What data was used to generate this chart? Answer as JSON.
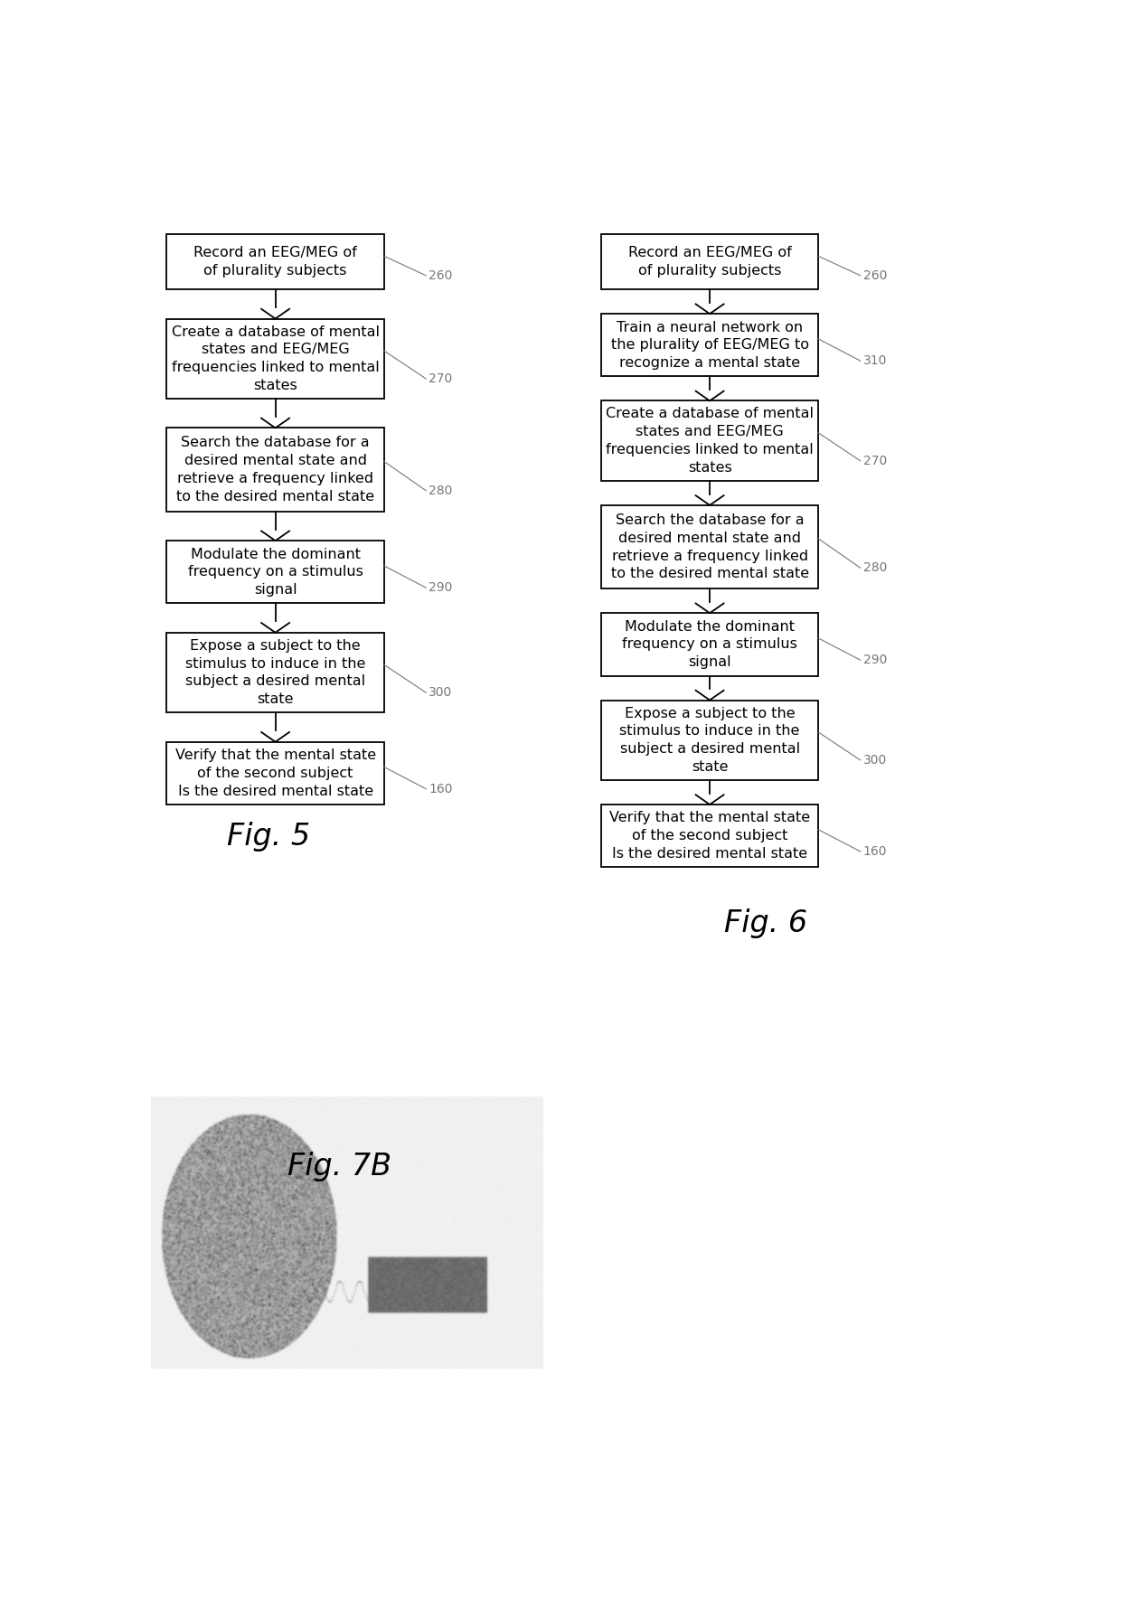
{
  "fig5_boxes": [
    {
      "text": "Record an EEG/MEG of\nof plurality subjects",
      "label": "260"
    },
    {
      "text": "Create a database of mental\nstates and EEG/MEG\nfrequencies linked to mental\nstates",
      "label": "270"
    },
    {
      "text": "Search the database for a\ndesired mental state and\nretrieve a frequency linked\nto the desired mental state",
      "label": "280"
    },
    {
      "text": "Modulate the dominant\nfrequency on a stimulus\nsignal",
      "label": "290"
    },
    {
      "text": "Expose a subject to the\nstimulus to induce in the\nsubject a desired mental\nstate",
      "label": "300"
    },
    {
      "text": "Verify that the mental state\nof the second subject\nIs the desired mental state",
      "label": "160"
    }
  ],
  "fig6_boxes": [
    {
      "text": "Record an EEG/MEG of\nof plurality subjects",
      "label": "260"
    },
    {
      "text": "Train a neural network on\nthe plurality of EEG/MEG to\nrecognize a mental state",
      "label": "310"
    },
    {
      "text": "Create a database of mental\nstates and EEG/MEG\nfrequencies linked to mental\nstates",
      "label": "270"
    },
    {
      "text": "Search the database for a\ndesired mental state and\nretrieve a frequency linked\nto the desired mental state",
      "label": "280"
    },
    {
      "text": "Modulate the dominant\nfrequency on a stimulus\nsignal",
      "label": "290"
    },
    {
      "text": "Expose a subject to the\nstimulus to induce in the\nsubject a desired mental\nstate",
      "label": "300"
    },
    {
      "text": "Verify that the mental state\nof the second subject\nIs the desired mental state",
      "label": "160"
    }
  ],
  "fig5_label": "Fig. 5",
  "fig6_label": "Fig. 6",
  "fig7b_label": "Fig. 7B",
  "bg_color": "#ffffff",
  "box_edge_color": "#000000",
  "box_face_color": "#ffffff",
  "arrow_color": "#000000",
  "label_color": "#777777",
  "text_color": "#000000",
  "font_size": 11.5,
  "label_font_size": 10,
  "fig_label_font_size": 24
}
